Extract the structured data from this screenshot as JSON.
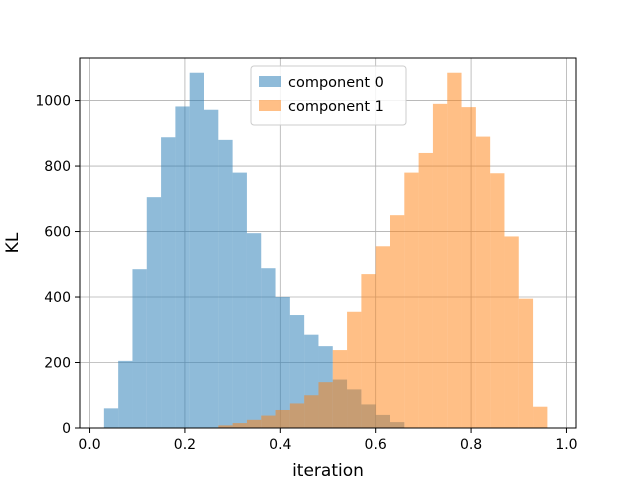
{
  "chart_data": {
    "type": "bar",
    "title": "",
    "xlabel": "iteration",
    "ylabel": "KL",
    "xlim": [
      -0.02,
      1.02
    ],
    "ylim": [
      0,
      1130
    ],
    "xticks": [
      0.0,
      0.2,
      0.4,
      0.6,
      0.8,
      1.0
    ],
    "xtick_labels": [
      "0.0",
      "0.2",
      "0.4",
      "0.6",
      "0.8",
      "1.0"
    ],
    "yticks": [
      0,
      200,
      400,
      600,
      800,
      1000
    ],
    "ytick_labels": [
      "0",
      "200",
      "400",
      "600",
      "800",
      "1000"
    ],
    "grid": true,
    "legend": "top-center",
    "bin_width": 0.03,
    "series": [
      {
        "name": "component 0",
        "color": "#1f77b4",
        "alpha": 0.5,
        "bin_starts": [
          0.03,
          0.06,
          0.09,
          0.12,
          0.15,
          0.18,
          0.21,
          0.24,
          0.27,
          0.3,
          0.33,
          0.36,
          0.39,
          0.42,
          0.45,
          0.48,
          0.51,
          0.54,
          0.57,
          0.6,
          0.63
        ],
        "values": [
          60,
          205,
          485,
          705,
          888,
          982,
          1085,
          972,
          880,
          780,
          595,
          488,
          400,
          345,
          285,
          250,
          148,
          118,
          72,
          40,
          18
        ]
      },
      {
        "name": "component 1",
        "color": "#ff7f0e",
        "alpha": 0.5,
        "bin_starts": [
          0.27,
          0.3,
          0.33,
          0.36,
          0.39,
          0.42,
          0.45,
          0.48,
          0.51,
          0.54,
          0.57,
          0.6,
          0.63,
          0.66,
          0.69,
          0.72,
          0.75,
          0.78,
          0.81,
          0.84,
          0.87,
          0.9,
          0.93
        ],
        "values": [
          8,
          15,
          25,
          38,
          55,
          75,
          100,
          140,
          238,
          355,
          470,
          555,
          650,
          780,
          840,
          990,
          1085,
          980,
          890,
          778,
          585,
          395,
          65
        ]
      }
    ]
  }
}
